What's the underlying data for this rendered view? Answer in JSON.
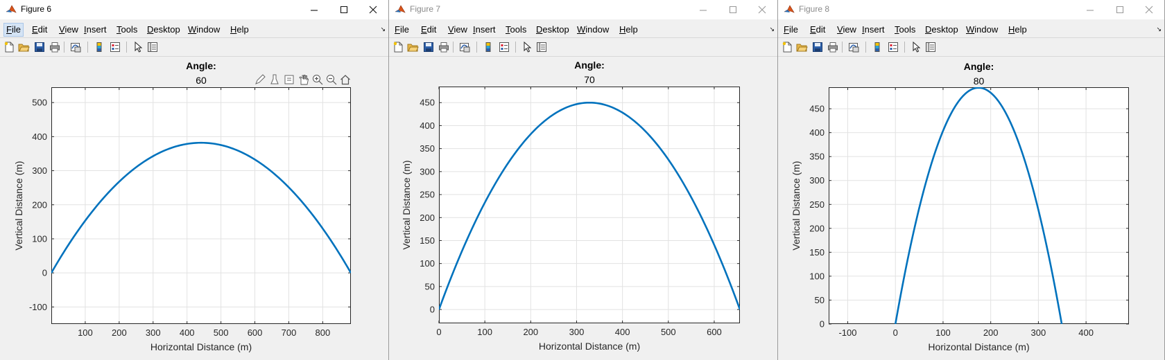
{
  "colors": {
    "line": "#0072BD",
    "title_bg": "#ffffff",
    "figure_bg": "#f0f0f0",
    "grid": "#e2e2e2"
  },
  "menus": [
    "File",
    "Edit",
    "View",
    "Insert",
    "Tools",
    "Desktop",
    "Window",
    "Help"
  ],
  "toolbar_icons": [
    "new-file-icon",
    "open-folder-icon",
    "save-icon",
    "print-icon",
    "link-plot-icon",
    "colorbar-icon",
    "legend-icon",
    "pointer-icon",
    "property-inspector-icon"
  ],
  "axes_toolbar_icons": [
    "brush-icon",
    "data-cursor-icon",
    "rotate-icon",
    "pan-icon",
    "zoom-in-icon",
    "zoom-out-icon",
    "home-icon"
  ],
  "windows": [
    {
      "title": "Figure 6",
      "active": true,
      "plot_title": "Angle:",
      "plot_subtitle": "60",
      "chart_data": {
        "type": "line",
        "xlabel": "Horizontal Distance (m)",
        "ylabel": "Vertical Distance (m)",
        "xlim": [
          0,
          883
        ],
        "ylim": [
          -150,
          545
        ],
        "xticks": [
          100,
          200,
          300,
          400,
          500,
          600,
          700,
          800
        ],
        "yticks": [
          -100,
          0,
          100,
          200,
          300,
          400,
          500
        ],
        "grid": true,
        "series": [
          {
            "range": 883,
            "peak": 382
          }
        ]
      }
    },
    {
      "title": "Figure 7",
      "active": false,
      "plot_title": "Angle:",
      "plot_subtitle": "70",
      "chart_data": {
        "type": "line",
        "xlabel": "Horizontal Distance (m)",
        "ylabel": "Vertical Distance (m)",
        "xlim": [
          0,
          656
        ],
        "ylim": [
          -30,
          485
        ],
        "xticks": [
          0,
          100,
          200,
          300,
          400,
          500,
          600
        ],
        "yticks": [
          0,
          50,
          100,
          150,
          200,
          250,
          300,
          350,
          400,
          450
        ],
        "grid": true,
        "series": [
          {
            "range": 656,
            "peak": 450
          }
        ]
      }
    },
    {
      "title": "Figure 8",
      "active": false,
      "plot_title": "Angle:",
      "plot_subtitle": "80",
      "chart_data": {
        "type": "line",
        "xlabel": "Horizontal Distance (m)",
        "ylabel": "Vertical Distance (m)",
        "xlim": [
          -140,
          490
        ],
        "ylim": [
          0,
          495
        ],
        "xticks": [
          -100,
          0,
          100,
          200,
          300,
          400
        ],
        "yticks": [
          0,
          50,
          100,
          150,
          200,
          250,
          300,
          350,
          400,
          450
        ],
        "grid": true,
        "series": [
          {
            "range": 349,
            "peak": 494
          }
        ]
      }
    }
  ]
}
